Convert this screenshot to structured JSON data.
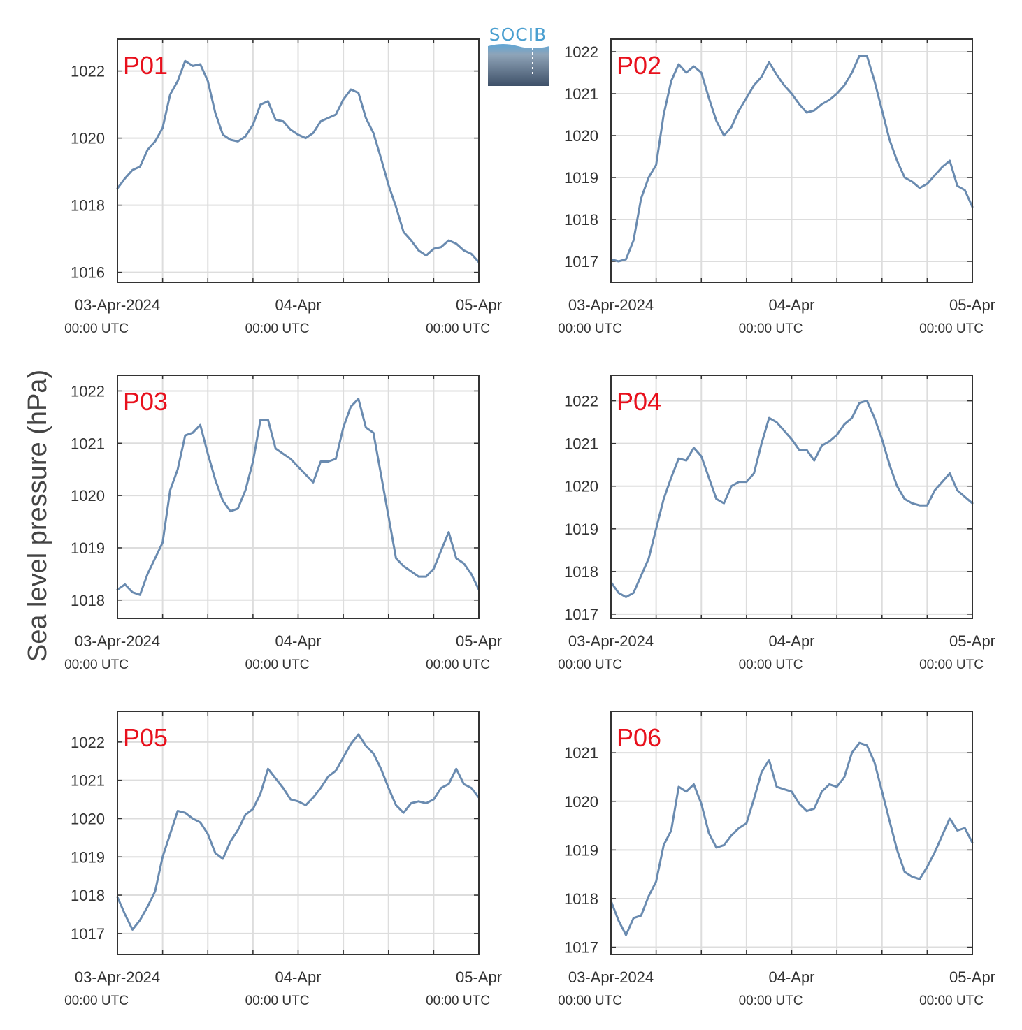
{
  "logo": {
    "text": "SOCIB"
  },
  "ylabel": "Sea level pressure (hPa)",
  "x_tick_labels": [
    "03-Apr-2024",
    "04-Apr",
    "05-Apr"
  ],
  "x_tick_sublabels": [
    "00:00 UTC",
    "00:00 UTC",
    "00:00 UTC"
  ],
  "colors": {
    "line": "#6a8bb0",
    "title": "#e8101c",
    "grid": "#dddddd",
    "axis": "#333333"
  },
  "chart_data": [
    {
      "type": "line",
      "title": "P01",
      "xlim": [
        0,
        48
      ],
      "ylim": [
        1015.7,
        1022.95
      ],
      "yticks": [
        1016,
        1018,
        1020,
        1022
      ],
      "grid": true,
      "x": [
        0,
        1,
        2,
        3,
        4,
        5,
        6,
        7,
        8,
        9,
        10,
        11,
        12,
        13,
        14,
        15,
        16,
        17,
        18,
        19,
        20,
        21,
        22,
        23,
        24,
        25,
        26,
        27,
        28,
        29,
        30,
        31,
        32,
        33,
        34,
        35,
        36,
        37,
        38,
        39,
        40,
        41,
        42,
        43,
        44,
        45,
        46,
        47,
        48
      ],
      "values": [
        1018.5,
        1018.8,
        1019.05,
        1019.15,
        1019.65,
        1019.9,
        1020.3,
        1021.3,
        1021.7,
        1022.3,
        1022.15,
        1022.2,
        1021.7,
        1020.75,
        1020.1,
        1019.95,
        1019.9,
        1020.05,
        1020.4,
        1021.0,
        1021.1,
        1020.55,
        1020.5,
        1020.25,
        1020.1,
        1020.0,
        1020.15,
        1020.5,
        1020.6,
        1020.7,
        1021.15,
        1021.45,
        1021.35,
        1020.6,
        1020.15,
        1019.4,
        1018.6,
        1017.95,
        1017.2,
        1016.95,
        1016.65,
        1016.5,
        1016.7,
        1016.75,
        1016.95,
        1016.85,
        1016.65,
        1016.55,
        1016.3
      ]
    },
    {
      "type": "line",
      "title": "P02",
      "xlim": [
        0,
        48
      ],
      "ylim": [
        1016.5,
        1022.3
      ],
      "yticks": [
        1017,
        1018,
        1019,
        1020,
        1021,
        1022
      ],
      "grid": true,
      "x": [
        0,
        1,
        2,
        3,
        4,
        5,
        6,
        7,
        8,
        9,
        10,
        11,
        12,
        13,
        14,
        15,
        16,
        17,
        18,
        19,
        20,
        21,
        22,
        23,
        24,
        25,
        26,
        27,
        28,
        29,
        30,
        31,
        32,
        33,
        34,
        35,
        36,
        37,
        38,
        39,
        40,
        41,
        42,
        43,
        44,
        45,
        46,
        47,
        48
      ],
      "values": [
        1017.05,
        1017.0,
        1017.05,
        1017.5,
        1018.5,
        1019.0,
        1019.3,
        1020.5,
        1021.3,
        1021.7,
        1021.5,
        1021.65,
        1021.5,
        1020.9,
        1020.35,
        1020.0,
        1020.2,
        1020.6,
        1020.9,
        1021.2,
        1021.4,
        1021.75,
        1021.45,
        1021.2,
        1021.0,
        1020.75,
        1020.55,
        1020.6,
        1020.75,
        1020.85,
        1021.0,
        1021.2,
        1021.5,
        1021.9,
        1021.9,
        1021.3,
        1020.6,
        1019.9,
        1019.4,
        1019.0,
        1018.9,
        1018.75,
        1018.85,
        1019.05,
        1019.25,
        1019.4,
        1018.8,
        1018.7,
        1018.3
      ]
    },
    {
      "type": "line",
      "title": "P03",
      "xlim": [
        0,
        48
      ],
      "ylim": [
        1017.65,
        1022.3
      ],
      "yticks": [
        1018,
        1019,
        1020,
        1021,
        1022
      ],
      "grid": true,
      "x": [
        0,
        1,
        2,
        3,
        4,
        5,
        6,
        7,
        8,
        9,
        10,
        11,
        12,
        13,
        14,
        15,
        16,
        17,
        18,
        19,
        20,
        21,
        22,
        23,
        24,
        25,
        26,
        27,
        28,
        29,
        30,
        31,
        32,
        33,
        34,
        35,
        36,
        37,
        38,
        39,
        40,
        41,
        42,
        43,
        44,
        45,
        46,
        47,
        48
      ],
      "values": [
        1018.2,
        1018.3,
        1018.15,
        1018.1,
        1018.5,
        1018.8,
        1019.1,
        1020.1,
        1020.5,
        1021.15,
        1021.2,
        1021.35,
        1020.8,
        1020.3,
        1019.9,
        1019.7,
        1019.75,
        1020.1,
        1020.65,
        1021.45,
        1021.45,
        1020.9,
        1020.8,
        1020.7,
        1020.55,
        1020.4,
        1020.25,
        1020.65,
        1020.65,
        1020.7,
        1021.3,
        1021.7,
        1021.85,
        1021.3,
        1021.2,
        1020.4,
        1019.6,
        1018.8,
        1018.65,
        1018.55,
        1018.45,
        1018.45,
        1018.6,
        1018.95,
        1019.3,
        1018.8,
        1018.7,
        1018.5,
        1018.2
      ]
    },
    {
      "type": "line",
      "title": "P04",
      "xlim": [
        0,
        48
      ],
      "ylim": [
        1016.9,
        1022.6
      ],
      "yticks": [
        1017,
        1018,
        1019,
        1020,
        1021,
        1022
      ],
      "grid": true,
      "x": [
        0,
        1,
        2,
        3,
        4,
        5,
        6,
        7,
        8,
        9,
        10,
        11,
        12,
        13,
        14,
        15,
        16,
        17,
        18,
        19,
        20,
        21,
        22,
        23,
        24,
        25,
        26,
        27,
        28,
        29,
        30,
        31,
        32,
        33,
        34,
        35,
        36,
        37,
        38,
        39,
        40,
        41,
        42,
        43,
        44,
        45,
        46,
        47,
        48
      ],
      "values": [
        1017.75,
        1017.5,
        1017.4,
        1017.5,
        1017.9,
        1018.3,
        1019.0,
        1019.7,
        1020.2,
        1020.65,
        1020.6,
        1020.9,
        1020.7,
        1020.2,
        1019.7,
        1019.6,
        1020.0,
        1020.1,
        1020.1,
        1020.3,
        1021.0,
        1021.6,
        1021.5,
        1021.3,
        1021.1,
        1020.85,
        1020.85,
        1020.6,
        1020.95,
        1021.05,
        1021.2,
        1021.45,
        1021.6,
        1021.95,
        1022.0,
        1021.6,
        1021.1,
        1020.5,
        1020.0,
        1019.7,
        1019.6,
        1019.55,
        1019.55,
        1019.9,
        1020.1,
        1020.3,
        1019.9,
        1019.75,
        1019.6
      ]
    },
    {
      "type": "line",
      "title": "P05",
      "xlim": [
        0,
        48
      ],
      "ylim": [
        1016.45,
        1022.8
      ],
      "yticks": [
        1017,
        1018,
        1019,
        1020,
        1021,
        1022
      ],
      "grid": true,
      "x": [
        0,
        1,
        2,
        3,
        4,
        5,
        6,
        7,
        8,
        9,
        10,
        11,
        12,
        13,
        14,
        15,
        16,
        17,
        18,
        19,
        20,
        21,
        22,
        23,
        24,
        25,
        26,
        27,
        28,
        29,
        30,
        31,
        32,
        33,
        34,
        35,
        36,
        37,
        38,
        39,
        40,
        41,
        42,
        43,
        44,
        45,
        46,
        47,
        48
      ],
      "values": [
        1017.95,
        1017.5,
        1017.1,
        1017.35,
        1017.7,
        1018.1,
        1019.0,
        1019.6,
        1020.2,
        1020.15,
        1020.0,
        1019.9,
        1019.6,
        1019.1,
        1018.95,
        1019.4,
        1019.7,
        1020.1,
        1020.25,
        1020.65,
        1021.3,
        1021.05,
        1020.8,
        1020.5,
        1020.45,
        1020.35,
        1020.55,
        1020.8,
        1021.1,
        1021.25,
        1021.6,
        1021.95,
        1022.2,
        1021.9,
        1021.7,
        1021.3,
        1020.8,
        1020.35,
        1020.15,
        1020.4,
        1020.45,
        1020.4,
        1020.5,
        1020.8,
        1020.9,
        1021.3,
        1020.9,
        1020.8,
        1020.55
      ]
    },
    {
      "type": "line",
      "title": "P06",
      "xlim": [
        0,
        48
      ],
      "ylim": [
        1016.85,
        1021.85
      ],
      "yticks": [
        1017,
        1018,
        1019,
        1020,
        1021
      ],
      "grid": true,
      "x": [
        0,
        1,
        2,
        3,
        4,
        5,
        6,
        7,
        8,
        9,
        10,
        11,
        12,
        13,
        14,
        15,
        16,
        17,
        18,
        19,
        20,
        21,
        22,
        23,
        24,
        25,
        26,
        27,
        28,
        29,
        30,
        31,
        32,
        33,
        34,
        35,
        36,
        37,
        38,
        39,
        40,
        41,
        42,
        43,
        44,
        45,
        46,
        47,
        48
      ],
      "values": [
        1017.95,
        1017.55,
        1017.25,
        1017.6,
        1017.65,
        1018.05,
        1018.35,
        1019.1,
        1019.4,
        1020.3,
        1020.2,
        1020.35,
        1019.95,
        1019.35,
        1019.05,
        1019.1,
        1019.3,
        1019.45,
        1019.55,
        1020.05,
        1020.6,
        1020.85,
        1020.3,
        1020.25,
        1020.2,
        1019.95,
        1019.8,
        1019.85,
        1020.2,
        1020.35,
        1020.3,
        1020.5,
        1021.0,
        1021.2,
        1021.15,
        1020.8,
        1020.2,
        1019.6,
        1019.0,
        1018.55,
        1018.45,
        1018.4,
        1018.65,
        1018.95,
        1019.3,
        1019.65,
        1019.4,
        1019.45,
        1019.15
      ]
    }
  ]
}
